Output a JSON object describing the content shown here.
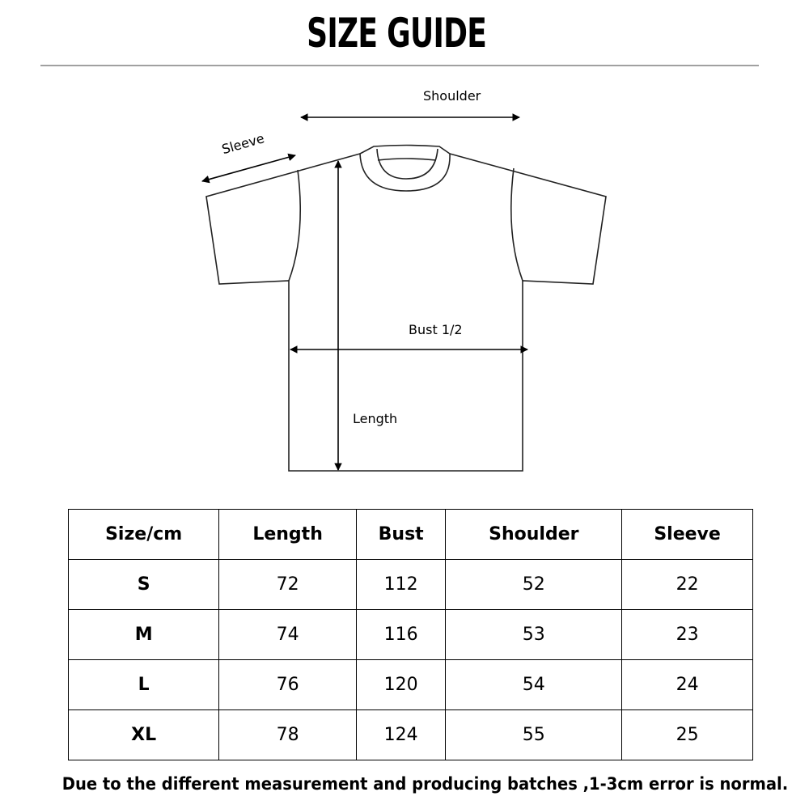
{
  "title": "SIZE GUIDE",
  "diagram": {
    "labels": {
      "shoulder": "Shoulder",
      "sleeve": "Sleeve",
      "bust": "Bust 1/2",
      "length": "Length"
    }
  },
  "table": {
    "headers": [
      "Size/cm",
      "Length",
      "Bust",
      "Shoulder",
      "Sleeve"
    ],
    "rows": [
      [
        "S",
        "72",
        "112",
        "52",
        "22"
      ],
      [
        "M",
        "74",
        "116",
        "53",
        "23"
      ],
      [
        "L",
        "76",
        "120",
        "54",
        "24"
      ],
      [
        "XL",
        "78",
        "124",
        "55",
        "25"
      ]
    ]
  },
  "note": "Due to the different measurement and producing batches ,1-3cm error is  normal."
}
